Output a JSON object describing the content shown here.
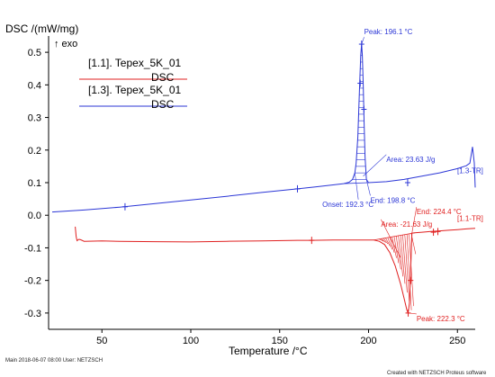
{
  "chart_data": {
    "type": "line",
    "ylabel": "DSC /(mW/mg)",
    "exo_label": "↑ exo",
    "xlabel": "Temperature /°C",
    "xlim": [
      20,
      260
    ],
    "ylim": [
      -0.35,
      0.55
    ],
    "xticks": [
      50,
      100,
      150,
      200,
      250
    ],
    "yticks": [
      -0.3,
      -0.2,
      -0.1,
      0.0,
      0.1,
      0.2,
      0.3,
      0.4,
      0.5
    ],
    "ytick_labels": [
      "-0.3",
      "-0.2",
      "-0.1",
      "0.0",
      "0.1",
      "0.2",
      "0.3",
      "0.4",
      "0.5"
    ],
    "xtick_labels": [
      "50",
      "100",
      "150",
      "200",
      "250"
    ],
    "grid": false,
    "legend_position": "top-left",
    "series": [
      {
        "name": "[1.1]. Tepex_5K_01",
        "sub": "DSC",
        "color": "#e02020",
        "end_label": "[1.1-TR]",
        "points": [
          [
            35,
            -0.035
          ],
          [
            35.5,
            -0.065
          ],
          [
            36,
            -0.078
          ],
          [
            37,
            -0.074
          ],
          [
            38,
            -0.075
          ],
          [
            40,
            -0.08
          ],
          [
            50,
            -0.079
          ],
          [
            60,
            -0.08
          ],
          [
            80,
            -0.081
          ],
          [
            100,
            -0.082
          ],
          [
            120,
            -0.08
          ],
          [
            140,
            -0.079
          ],
          [
            160,
            -0.077
          ],
          [
            168,
            -0.077
          ],
          [
            180,
            -0.076
          ],
          [
            195,
            -0.076
          ],
          [
            203,
            -0.076
          ],
          [
            206,
            -0.08
          ],
          [
            209,
            -0.09
          ],
          [
            212,
            -0.115
          ],
          [
            215,
            -0.155
          ],
          [
            218,
            -0.21
          ],
          [
            220,
            -0.255
          ],
          [
            221.5,
            -0.29
          ],
          [
            222.3,
            -0.3
          ],
          [
            223,
            -0.27
          ],
          [
            223.5,
            -0.2
          ],
          [
            224.4,
            -0.055
          ],
          [
            226,
            -0.054
          ],
          [
            230,
            -0.052
          ],
          [
            235,
            -0.05
          ],
          [
            240,
            -0.048
          ],
          [
            245,
            -0.046
          ],
          [
            250,
            -0.044
          ],
          [
            255,
            -0.042
          ],
          [
            260,
            -0.04
          ]
        ],
        "markers": [
          [
            168,
            -0.077
          ],
          [
            236.5,
            -0.052
          ],
          [
            239,
            -0.05
          ],
          [
            222.3,
            -0.3
          ],
          [
            223.7,
            -0.2
          ]
        ],
        "annotations": [
          {
            "text": "Area: -21.63 J/g",
            "x": 207,
            "y": -0.035
          },
          {
            "text": "End: 224.4 °C",
            "x": 227,
            "y": 0.003
          },
          {
            "text": "Peak: 222.3 °C",
            "x": 227,
            "y": -0.325
          }
        ]
      },
      {
        "name": "[1.3]. Tepex_5K_01",
        "sub": "DSC",
        "color": "#2b36d6",
        "end_label": "[1.3-TR]",
        "points": [
          [
            22,
            0.01
          ],
          [
            40,
            0.016
          ],
          [
            60,
            0.025
          ],
          [
            80,
            0.036
          ],
          [
            100,
            0.047
          ],
          [
            120,
            0.058
          ],
          [
            140,
            0.07
          ],
          [
            160,
            0.081
          ],
          [
            170,
            0.087
          ],
          [
            180,
            0.093
          ],
          [
            186,
            0.097
          ],
          [
            189,
            0.101
          ],
          [
            191,
            0.11
          ],
          [
            192.3,
            0.13
          ],
          [
            193,
            0.16
          ],
          [
            194,
            0.24
          ],
          [
            195,
            0.4
          ],
          [
            195.6,
            0.49
          ],
          [
            196.1,
            0.525
          ],
          [
            196.5,
            0.49
          ],
          [
            197,
            0.4
          ],
          [
            197.5,
            0.28
          ],
          [
            198,
            0.18
          ],
          [
            198.8,
            0.11
          ],
          [
            200,
            0.1
          ],
          [
            210,
            0.103
          ],
          [
            220,
            0.11
          ],
          [
            230,
            0.12
          ],
          [
            240,
            0.13
          ],
          [
            250,
            0.143
          ],
          [
            255,
            0.152
          ],
          [
            257,
            0.16
          ],
          [
            258.5,
            0.21
          ],
          [
            259.5,
            0.16
          ],
          [
            260,
            0.085
          ]
        ],
        "markers": [
          [
            63,
            0.026
          ],
          [
            160,
            0.081
          ],
          [
            196.1,
            0.525
          ],
          [
            195.3,
            0.405
          ],
          [
            197.4,
            0.325
          ],
          [
            222,
            0.1
          ]
        ],
        "annotations": [
          {
            "text": "Peak: 196.1 °C",
            "x": 197.5,
            "y": 0.555
          },
          {
            "text": "Area: 23.63 J/g",
            "x": 210,
            "y": 0.164
          },
          {
            "text": "Onset: 192.3 °C",
            "x": 174,
            "y": 0.026
          },
          {
            "text": "End: 198.8 °C",
            "x": 201,
            "y": 0.038
          }
        ]
      }
    ]
  },
  "footer": {
    "left": "Main   2018-06-07 08:00   User: NETZSCH",
    "right": "Created with NETZSCH Proteus software"
  }
}
